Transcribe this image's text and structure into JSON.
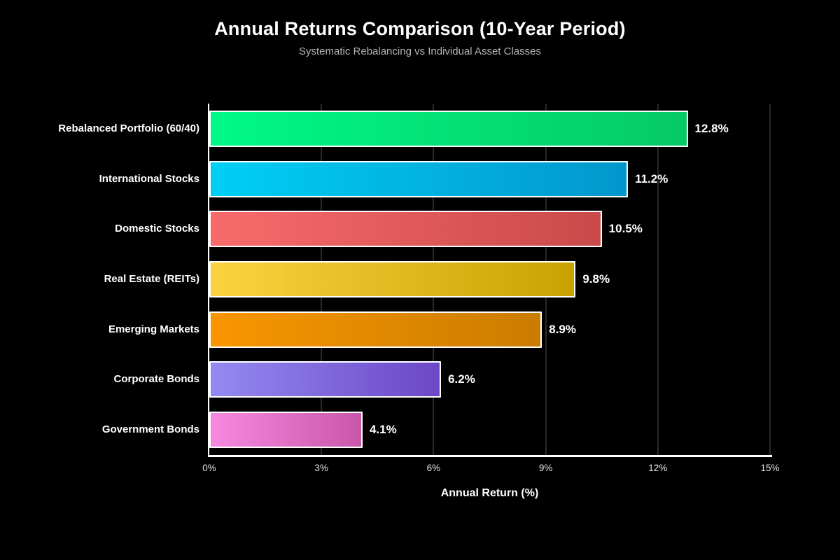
{
  "title": "Annual Returns Comparison (10-Year Period)",
  "subtitle": "Systematic Rebalancing vs Individual Asset Classes",
  "chart_data": {
    "type": "bar",
    "orientation": "horizontal",
    "title": "Annual Returns Comparison (10-Year Period)",
    "subtitle": "Systematic Rebalancing vs Individual Asset Classes",
    "categories": [
      "Rebalanced Portfolio (60/40)",
      "International Stocks",
      "Domestic Stocks",
      "Real Estate (REITs)",
      "Emerging Markets",
      "Corporate Bonds",
      "Government Bonds"
    ],
    "values": [
      12.8,
      11.2,
      10.5,
      9.8,
      8.9,
      6.2,
      4.1
    ],
    "value_labels": [
      "12.8%",
      "11.2%",
      "10.5%",
      "9.8%",
      "8.9%",
      "6.2%",
      "4.1%"
    ],
    "xlabel": "Annual Return (%)",
    "x_ticks": [
      {
        "value": 0,
        "label": "0%"
      },
      {
        "value": 3,
        "label": "3%"
      },
      {
        "value": 6,
        "label": "6%"
      },
      {
        "value": 9,
        "label": "9%"
      },
      {
        "value": 12,
        "label": "12%"
      },
      {
        "value": 15,
        "label": "15%"
      }
    ],
    "xlim": [
      0,
      15
    ],
    "grid": "vertical-only",
    "legend": "none",
    "bar_gradients": [
      [
        "#00f987",
        "#06c966"
      ],
      [
        "#00cff5",
        "#0397cc"
      ],
      [
        "#f96b6b",
        "#c94a4a"
      ],
      [
        "#fbd340",
        "#c7a300"
      ],
      [
        "#f99600",
        "#ca7c00"
      ],
      [
        "#948af1",
        "#6c47c7"
      ],
      [
        "#f689e0",
        "#c957a9"
      ]
    ],
    "bar_border_color": "#ffffff",
    "background_color": "#000000",
    "axis_color": "#ffffff",
    "gridline_color": "#2a2a2a",
    "text_color": "#ffffff",
    "subtitle_color": "#b3b3b3",
    "tick_label_color": "#e3e3e3"
  }
}
